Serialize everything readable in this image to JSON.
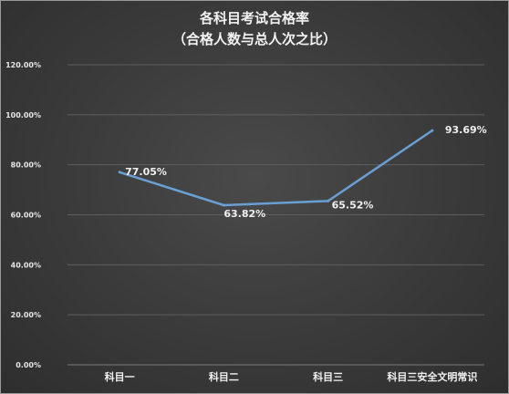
{
  "chart_data": {
    "type": "line",
    "title": "各科目考试合格率",
    "subtitle": "（合格人数与总人次之比）",
    "categories": [
      "科目一",
      "科目二",
      "科目三",
      "科目三安全文明常识"
    ],
    "series": [
      {
        "values": [
          77.05,
          63.82,
          65.52,
          93.69
        ],
        "labels": [
          "77.05%",
          "63.82%",
          "65.52%",
          "93.69%"
        ]
      }
    ],
    "ylim": [
      0,
      120
    ],
    "yticks": [
      0,
      20,
      40,
      60,
      80,
      100,
      120
    ],
    "ytick_labels": [
      "0.00%",
      "20.00%",
      "40.00%",
      "60.00%",
      "80.00%",
      "100.00%",
      "120.00%"
    ],
    "grid": true,
    "legend": "none",
    "colors": {
      "line": "#6a9fd4",
      "background": "#3a3a3a",
      "text": "#f0f0f0"
    }
  }
}
